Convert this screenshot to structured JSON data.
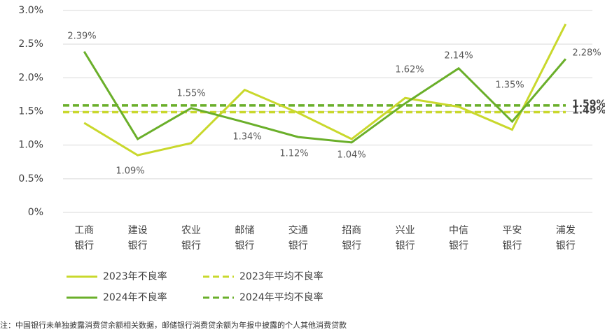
{
  "chart_data": {
    "type": "line",
    "categories": [
      [
        "工商",
        "银行"
      ],
      [
        "建设",
        "银行"
      ],
      [
        "农业",
        "银行"
      ],
      [
        "邮储",
        "银行"
      ],
      [
        "交通",
        "银行"
      ],
      [
        "招商",
        "银行"
      ],
      [
        "兴业",
        "银行"
      ],
      [
        "中信",
        "银行"
      ],
      [
        "平安",
        "银行"
      ],
      [
        "浦发",
        "银行"
      ]
    ],
    "series": [
      {
        "name": "2023年不良率",
        "color": "#c9d82c",
        "values": [
          1.33,
          0.85,
          1.03,
          1.82,
          1.48,
          1.09,
          1.7,
          1.57,
          1.23,
          2.8
        ]
      },
      {
        "name": "2024年不良率",
        "color": "#6aaf2a",
        "values": [
          2.39,
          1.09,
          1.55,
          1.34,
          1.12,
          1.04,
          1.62,
          2.14,
          1.35,
          2.28
        ],
        "value_labels": [
          "2.39%",
          "1.09%",
          "1.55%",
          "1.34%",
          "1.12%",
          "1.04%",
          "1.62%",
          "2.14%",
          "1.35%",
          "2.28%"
        ]
      }
    ],
    "reference_lines": [
      {
        "name": "2023年平均不良率",
        "color": "#c9d82c",
        "value": 1.49,
        "value_label": "1.49%"
      },
      {
        "name": "2024年平均不良率",
        "color": "#6aaf2a",
        "value": 1.59,
        "value_label": "1.59%"
      }
    ],
    "ylim": [
      0,
      3.0
    ],
    "yticks": [
      {
        "value": 0,
        "label": "0%"
      },
      {
        "value": 0.5,
        "label": "0.5%"
      },
      {
        "value": 1.0,
        "label": "1.0%"
      },
      {
        "value": 1.5,
        "label": "1.5%"
      },
      {
        "value": 2.0,
        "label": "2.0%"
      },
      {
        "value": 2.5,
        "label": "2.5%"
      },
      {
        "value": 3.0,
        "label": "3.0%"
      }
    ],
    "grid": true,
    "footnote": "注：中国银行未单独披露消费贷余额相关数据，邮储银行消费贷余额为年报中披露的个人其他消费贷款"
  }
}
